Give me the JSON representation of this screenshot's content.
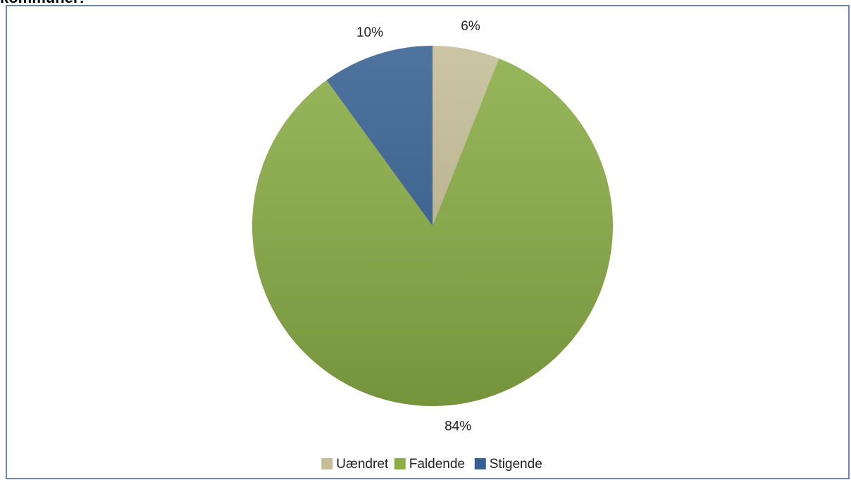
{
  "chart_data": {
    "type": "pie",
    "title": "kommuner:",
    "categories": [
      "Uændret",
      "Faldende",
      "Stigende"
    ],
    "values": [
      6,
      84,
      10
    ],
    "value_labels": [
      "6%",
      "84%",
      "10%"
    ],
    "colors": [
      "#c4bd97",
      "#8aad45",
      "#366092"
    ],
    "legend": "bottom"
  }
}
